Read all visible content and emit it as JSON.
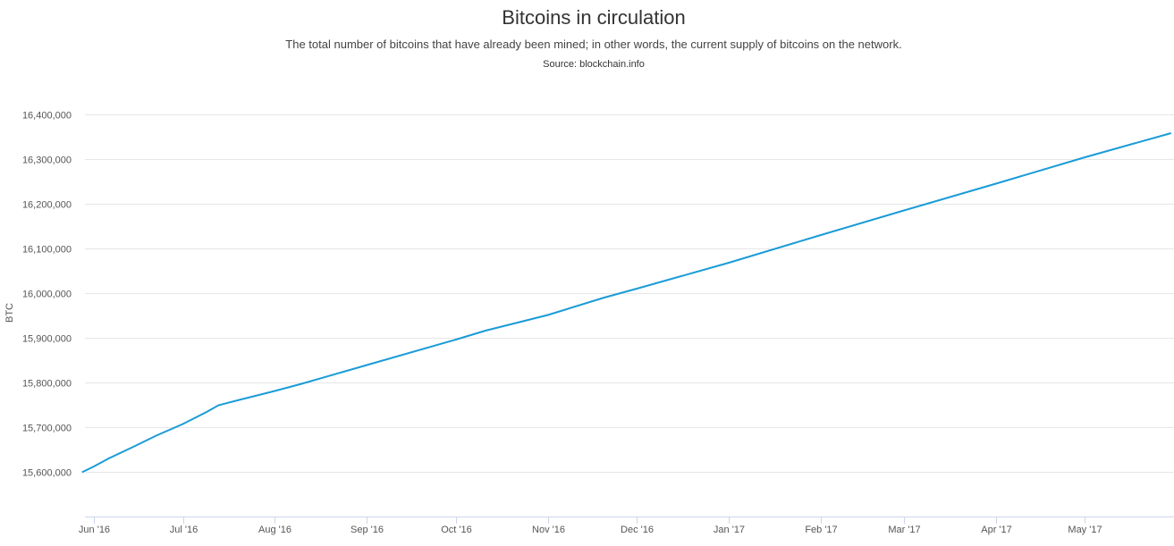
{
  "chart_data": {
    "type": "line",
    "title": "Bitcoins in circulation",
    "subtitle": "The total number of bitcoins that have already been mined; in other words, the current supply of bitcoins on the network.",
    "source": "Source: blockchain.info",
    "ylabel": "BTC",
    "xlabel": "",
    "x_tick_labels": [
      "Jun '16",
      "Jul '16",
      "Aug '16",
      "Sep '16",
      "Oct '16",
      "Nov '16",
      "Dec '16",
      "Jan '17",
      "Feb '17",
      "Mar '17",
      "Apr '17",
      "May '17"
    ],
    "x_tick_dates": [
      "2016-06-01",
      "2016-07-01",
      "2016-08-01",
      "2016-09-01",
      "2016-10-01",
      "2016-11-01",
      "2016-12-01",
      "2017-01-01",
      "2017-02-01",
      "2017-03-01",
      "2017-04-01",
      "2017-05-01"
    ],
    "y_ticks": [
      15600000,
      15700000,
      15800000,
      15900000,
      16000000,
      16100000,
      16200000,
      16300000,
      16400000
    ],
    "y_tick_labels": [
      "15,600,000",
      "15,700,000",
      "15,800,000",
      "15,900,000",
      "16,000,000",
      "16,100,000",
      "16,200,000",
      "16,300,000",
      "16,400,000"
    ],
    "ylim": [
      15500000,
      16400000
    ],
    "xlim": [
      "2016-05-29",
      "2017-05-31"
    ],
    "grid": true,
    "series": [
      {
        "color": "#1a9bd7",
        "points": [
          {
            "x": "2016-05-28",
            "y": 15599000
          },
          {
            "x": "2016-06-01",
            "y": 15612000
          },
          {
            "x": "2016-06-06",
            "y": 15630000
          },
          {
            "x": "2016-06-14",
            "y": 15655000
          },
          {
            "x": "2016-06-22",
            "y": 15681000
          },
          {
            "x": "2016-07-01",
            "y": 15707000
          },
          {
            "x": "2016-07-09",
            "y": 15734000
          },
          {
            "x": "2016-07-13",
            "y": 15749000
          },
          {
            "x": "2016-07-20",
            "y": 15761000
          },
          {
            "x": "2016-08-01",
            "y": 15781000
          },
          {
            "x": "2016-08-10",
            "y": 15797000
          },
          {
            "x": "2016-09-01",
            "y": 15839000
          },
          {
            "x": "2016-10-01",
            "y": 15896000
          },
          {
            "x": "2016-10-11",
            "y": 15916000
          },
          {
            "x": "2016-11-01",
            "y": 15951000
          },
          {
            "x": "2016-11-20",
            "y": 15990000
          },
          {
            "x": "2016-12-01",
            "y": 16010000
          },
          {
            "x": "2017-01-01",
            "y": 16068000
          },
          {
            "x": "2017-02-01",
            "y": 16130000
          },
          {
            "x": "2017-03-01",
            "y": 16185000
          },
          {
            "x": "2017-04-01",
            "y": 16245000
          },
          {
            "x": "2017-05-01",
            "y": 16304000
          },
          {
            "x": "2017-05-30",
            "y": 16358000
          }
        ]
      }
    ]
  }
}
